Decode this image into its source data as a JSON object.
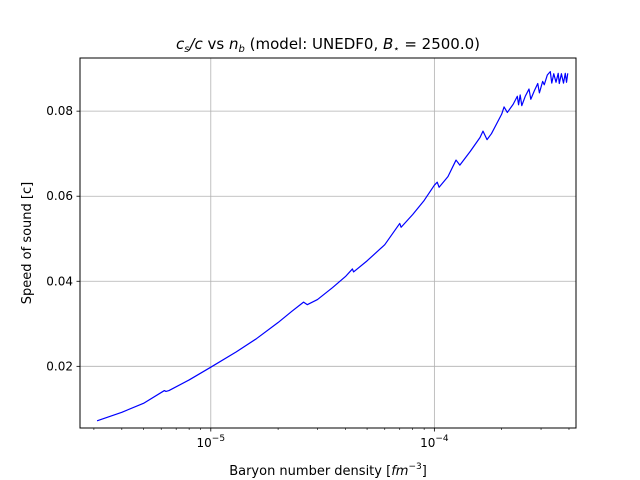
{
  "chart_data": {
    "type": "line",
    "title": "c_s/c vs n_b (model: UNEDF0, B_⋆ = 2500.0)",
    "title_parts": {
      "cs": "c",
      "cs_sub": "s",
      "slash_c": "/c",
      "vs": " vs ",
      "nb": "n",
      "nb_sub": "b",
      "model": " (model: UNEDF0, ",
      "bstar": "B",
      "bstar_sub": "⋆",
      "bstar_val": " = 2500.0)"
    },
    "xlabel": "Baryon number density [fm⁻³]",
    "xlabel_parts": {
      "text": "Baryon number density [",
      "unit": "fm",
      "exp": "−3",
      "close": "]"
    },
    "ylabel": "Speed of sound [c]",
    "x_scale": "log",
    "xlim": [
      2.6e-06,
      0.00043
    ],
    "ylim": [
      0.0055,
      0.0925
    ],
    "x_ticks": [
      {
        "value": 1e-05,
        "base": "10",
        "exp": "−5"
      },
      {
        "value": 0.0001,
        "base": "10",
        "exp": "−4"
      }
    ],
    "y_ticks": [
      {
        "value": 0.02,
        "label": "0.02"
      },
      {
        "value": 0.04,
        "label": "0.04"
      },
      {
        "value": 0.06,
        "label": "0.06"
      },
      {
        "value": 0.08,
        "label": "0.08"
      }
    ],
    "grid": true,
    "line_color": "#0000ff",
    "series": [
      {
        "points": [
          [
            3.1e-06,
            0.0072
          ],
          [
            4e-06,
            0.0092
          ],
          [
            5e-06,
            0.0113
          ],
          [
            6.2e-06,
            0.0143
          ],
          [
            6.3e-06,
            0.0141
          ],
          [
            6.5e-06,
            0.0143
          ],
          [
            8e-06,
            0.0168
          ],
          [
            1e-05,
            0.0198
          ],
          [
            1.3e-05,
            0.0234
          ],
          [
            1.6e-05,
            0.0265
          ],
          [
            2e-05,
            0.0303
          ],
          [
            2.3e-05,
            0.0329
          ],
          [
            2.6e-05,
            0.0351
          ],
          [
            2.7e-05,
            0.0345
          ],
          [
            3e-05,
            0.0357
          ],
          [
            3.5e-05,
            0.0385
          ],
          [
            4e-05,
            0.0411
          ],
          [
            4.3e-05,
            0.0429
          ],
          [
            4.35e-05,
            0.0422
          ],
          [
            5e-05,
            0.0448
          ],
          [
            6e-05,
            0.0486
          ],
          [
            7e-05,
            0.0536
          ],
          [
            7.1e-05,
            0.0527
          ],
          [
            8e-05,
            0.0557
          ],
          [
            9e-05,
            0.059
          ],
          [
            0.0001,
            0.0626
          ],
          [
            0.000103,
            0.0633
          ],
          [
            0.000105,
            0.0621
          ],
          [
            0.000115,
            0.0646
          ],
          [
            0.000125,
            0.0685
          ],
          [
            0.00013,
            0.0673
          ],
          [
            0.000145,
            0.0706
          ],
          [
            0.00016,
            0.0738
          ],
          [
            0.000165,
            0.0753
          ],
          [
            0.000172,
            0.0733
          ],
          [
            0.00018,
            0.0747
          ],
          [
            0.0002,
            0.0793
          ],
          [
            0.000205,
            0.081
          ],
          [
            0.000212,
            0.0797
          ],
          [
            0.000225,
            0.0816
          ],
          [
            0.000235,
            0.0835
          ],
          [
            0.000238,
            0.0815
          ],
          [
            0.000242,
            0.0838
          ],
          [
            0.000246,
            0.0813
          ],
          [
            0.000255,
            0.0835
          ],
          [
            0.000265,
            0.0852
          ],
          [
            0.00027,
            0.0828
          ],
          [
            0.00028,
            0.0848
          ],
          [
            0.00029,
            0.0865
          ],
          [
            0.000295,
            0.0843
          ],
          [
            0.000305,
            0.087
          ],
          [
            0.00031,
            0.0862
          ],
          [
            0.00032,
            0.0885
          ],
          [
            0.00033,
            0.0893
          ],
          [
            0.000335,
            0.0866
          ],
          [
            0.000342,
            0.0888
          ],
          [
            0.00035,
            0.0868
          ],
          [
            0.000358,
            0.0889
          ],
          [
            0.000362,
            0.0865
          ],
          [
            0.00037,
            0.0888
          ],
          [
            0.000378,
            0.0866
          ],
          [
            0.000385,
            0.0889
          ],
          [
            0.00039,
            0.0868
          ],
          [
            0.000395,
            0.0889
          ]
        ]
      }
    ]
  }
}
